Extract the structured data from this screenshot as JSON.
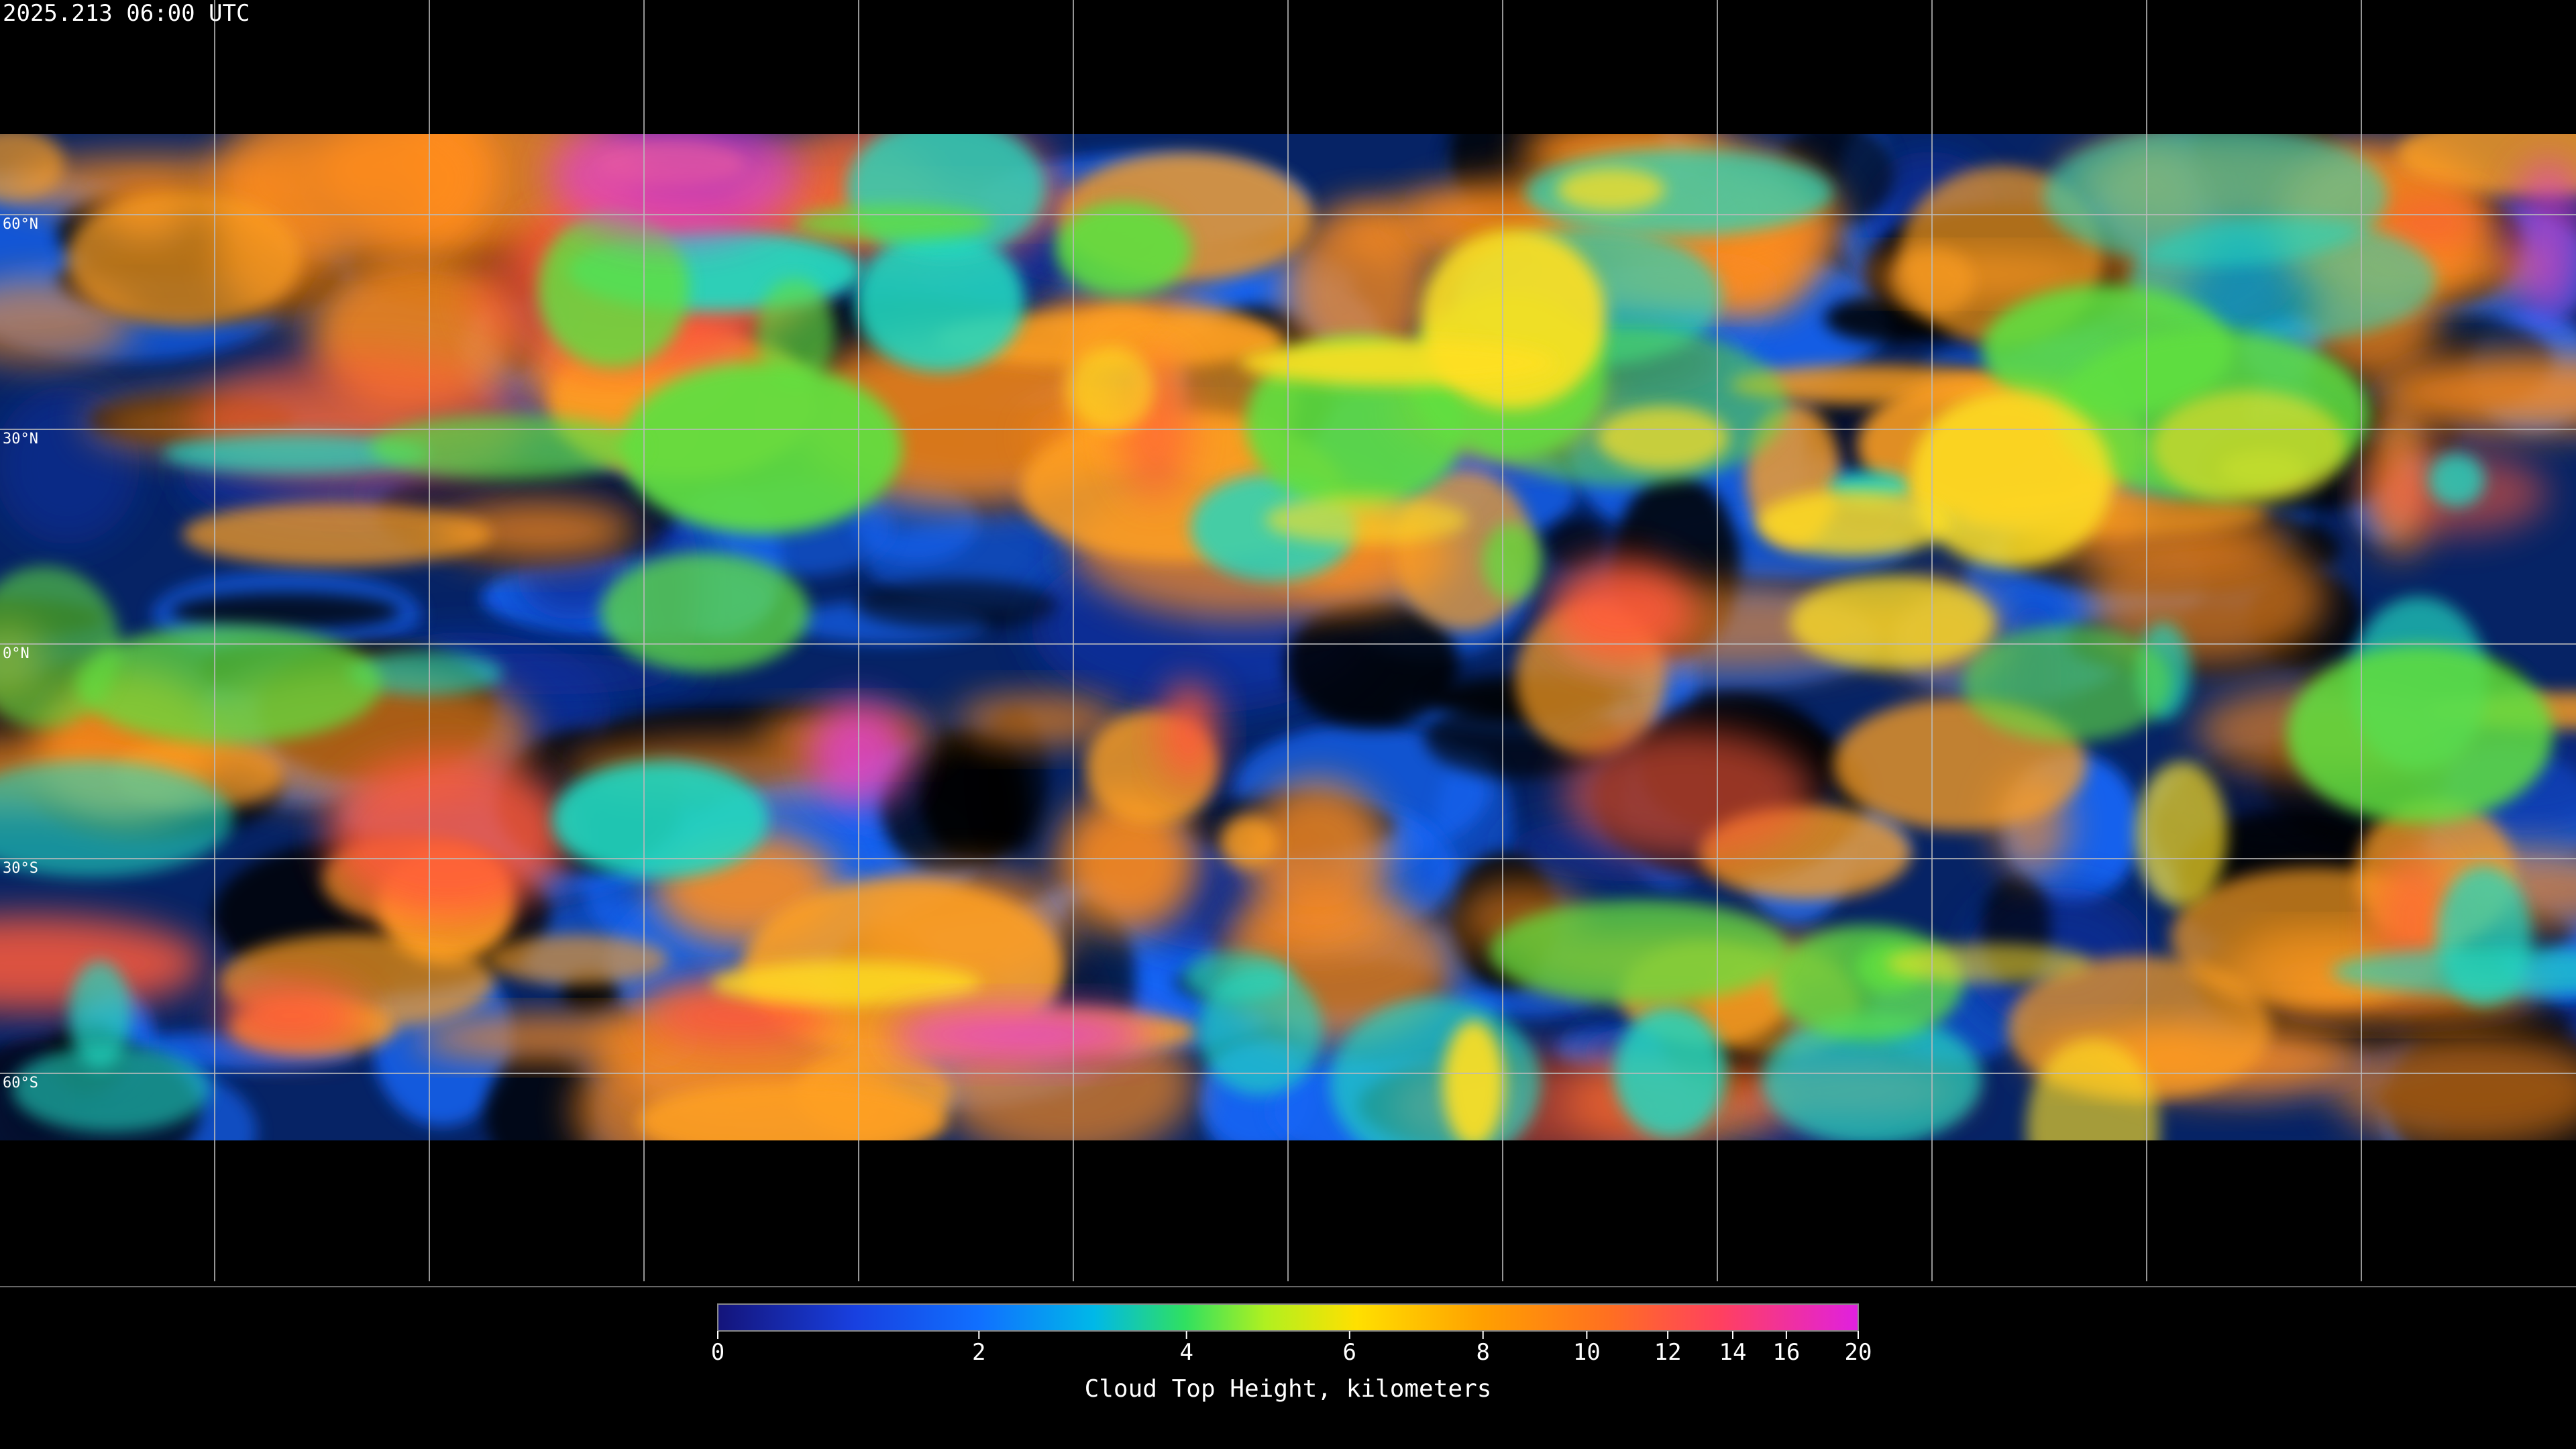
{
  "header": {
    "timestamp": "2025.213 06:00 UTC"
  },
  "map": {
    "latitude_labels": [
      "60°N",
      "30°N",
      "0°N",
      "30°S",
      "60°S"
    ]
  },
  "colorbar": {
    "ticks": [
      0,
      2,
      4,
      6,
      8,
      10,
      12,
      14,
      16,
      20
    ],
    "label": "Cloud Top Height, kilometers"
  }
}
